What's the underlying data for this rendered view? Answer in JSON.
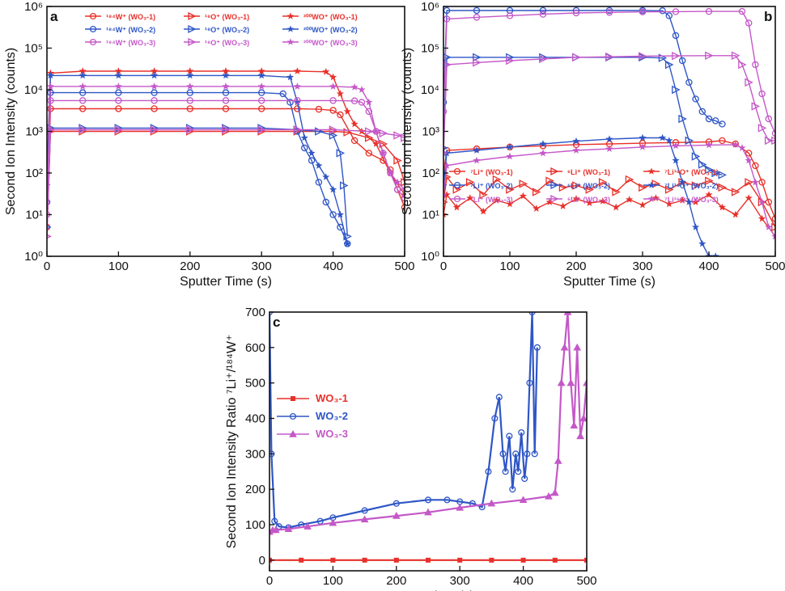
{
  "colors": {
    "red": "#e8302a",
    "blue": "#2f56c6",
    "purple": "#c458c8"
  },
  "chart_data": [
    {
      "id": "a",
      "type": "line",
      "panel_label": "a",
      "xlabel": "Sputter Time (s)",
      "ylabel": "Second Ion Intensity (counts)",
      "xlim": [
        0,
        500
      ],
      "ylim": [
        1,
        1000000
      ],
      "yscale": "log",
      "xticks": [
        "0",
        "100",
        "200",
        "300",
        "400",
        "500"
      ],
      "yticks": [
        "10⁰",
        "10¹",
        "10²",
        "10³",
        "10⁴",
        "10⁵",
        "10⁶"
      ],
      "legend_location": "top",
      "series": [
        {
          "name": "¹⁸⁴W⁺ (WO₃-1)",
          "color": "red",
          "marker": "circle",
          "x": [
            0,
            5,
            50,
            100,
            150,
            200,
            250,
            300,
            350,
            380,
            400,
            410,
            430,
            450,
            470,
            480,
            490,
            500
          ],
          "y": [
            5,
            3500,
            3500,
            3500,
            3500,
            3500,
            3500,
            3500,
            3500,
            3400,
            3200,
            2500,
            600,
            300,
            200,
            120,
            40,
            15
          ]
        },
        {
          "name": "¹⁸O⁺ (WO₃-1)",
          "color": "red",
          "marker": "triangle-right",
          "x": [
            0,
            5,
            50,
            100,
            150,
            200,
            250,
            300,
            350,
            400,
            420,
            450,
            470,
            490,
            500
          ],
          "y": [
            3,
            1000,
            1000,
            1000,
            1000,
            1000,
            1000,
            1000,
            1000,
            1000,
            950,
            700,
            500,
            200,
            60
          ]
        },
        {
          "name": "²⁰⁰WO⁺ (WO₃-1)",
          "color": "red",
          "marker": "star",
          "x": [
            0,
            5,
            50,
            100,
            150,
            200,
            250,
            300,
            350,
            390,
            400,
            410,
            420,
            430,
            440,
            460,
            480,
            500
          ],
          "y": [
            100,
            25000,
            28000,
            28000,
            28000,
            28000,
            28000,
            28000,
            28000,
            27000,
            20000,
            8000,
            3000,
            1500,
            1000,
            500,
            100,
            30
          ]
        },
        {
          "name": "¹⁸⁴W⁺ (WO₃-2)",
          "color": "blue",
          "marker": "circle",
          "x": [
            0,
            5,
            50,
            100,
            150,
            200,
            250,
            300,
            330,
            340,
            350,
            360,
            370,
            380,
            390,
            400,
            410,
            420
          ],
          "y": [
            20,
            8500,
            8500,
            8500,
            8500,
            8500,
            8500,
            8500,
            8000,
            5000,
            1000,
            400,
            200,
            60,
            20,
            10,
            5,
            2
          ]
        },
        {
          "name": "¹⁸O⁺ (WO₃-2)",
          "color": "blue",
          "marker": "triangle-right",
          "x": [
            0,
            5,
            50,
            100,
            150,
            200,
            250,
            300,
            350,
            380,
            400,
            410,
            415,
            420
          ],
          "y": [
            5,
            1200,
            1200,
            1200,
            1200,
            1200,
            1200,
            1200,
            1100,
            1000,
            800,
            300,
            50,
            3
          ]
        },
        {
          "name": "²⁰⁰WO⁺ (WO₃-2)",
          "color": "blue",
          "marker": "star",
          "x": [
            0,
            5,
            50,
            100,
            150,
            200,
            250,
            300,
            340,
            350,
            360,
            370,
            380,
            390,
            400,
            410,
            420
          ],
          "y": [
            50,
            22000,
            22000,
            22000,
            22000,
            22000,
            22000,
            22000,
            20000,
            5000,
            700,
            300,
            150,
            80,
            40,
            10,
            2
          ]
        },
        {
          "name": "¹⁸⁴W⁺ (WO₃-3)",
          "color": "purple",
          "marker": "circle",
          "x": [
            0,
            5,
            50,
            100,
            150,
            200,
            250,
            300,
            350,
            400,
            430,
            440,
            450,
            460,
            470,
            480,
            490,
            500
          ],
          "y": [
            10,
            5500,
            5500,
            5500,
            5500,
            5500,
            5500,
            5500,
            5500,
            5500,
            5400,
            5000,
            3000,
            1000,
            300,
            100,
            40,
            25
          ]
        },
        {
          "name": "¹⁸O⁺ (WO₃-3)",
          "color": "purple",
          "marker": "triangle-right",
          "x": [
            0,
            5,
            50,
            100,
            150,
            200,
            250,
            300,
            350,
            400,
            450,
            470,
            490,
            500
          ],
          "y": [
            3,
            1100,
            1100,
            1100,
            1100,
            1100,
            1100,
            1100,
            1100,
            1100,
            1000,
            900,
            800,
            700
          ]
        },
        {
          "name": "²⁰⁰WO⁺ (WO₃-3)",
          "color": "purple",
          "marker": "star",
          "x": [
            0,
            5,
            50,
            100,
            150,
            200,
            250,
            300,
            350,
            400,
            430,
            440,
            450,
            460,
            470,
            480,
            490,
            500
          ],
          "y": [
            20,
            12000,
            12000,
            12000,
            12000,
            12000,
            12000,
            12000,
            12000,
            12000,
            11500,
            10000,
            5000,
            1000,
            300,
            100,
            60,
            40
          ]
        }
      ]
    },
    {
      "id": "b",
      "type": "line",
      "panel_label": "b",
      "xlabel": "Sputter Time (s)",
      "ylabel": "Second Ion Intensity (counts)",
      "xlim": [
        0,
        500
      ],
      "ylim": [
        1,
        1000000
      ],
      "yscale": "log",
      "xticks": [
        "0",
        "100",
        "200",
        "300",
        "400",
        "500"
      ],
      "yticks": [
        "10⁰",
        "10¹",
        "10²",
        "10³",
        "10⁴",
        "10⁵",
        "10⁶"
      ],
      "legend_location": "middle",
      "series": [
        {
          "name": "⁷Li⁺ (WO₃-1)",
          "color": "red",
          "marker": "circle",
          "x": [
            0,
            5,
            50,
            100,
            150,
            200,
            250,
            300,
            350,
            400,
            420,
            440,
            460,
            470,
            480,
            490,
            500
          ],
          "y": [
            100,
            350,
            380,
            420,
            450,
            480,
            500,
            520,
            540,
            560,
            600,
            500,
            300,
            150,
            60,
            20,
            8
          ]
        },
        {
          "name": "⁶Li⁺ (WO₃-1)",
          "color": "red",
          "marker": "triangle-right",
          "x": [
            0,
            5,
            20,
            40,
            60,
            80,
            100,
            120,
            140,
            160,
            180,
            200,
            220,
            240,
            260,
            280,
            300,
            320,
            340,
            360,
            380,
            400,
            420,
            440,
            460,
            480,
            500
          ],
          "y": [
            20,
            80,
            40,
            60,
            30,
            70,
            40,
            55,
            35,
            65,
            45,
            50,
            40,
            60,
            35,
            70,
            45,
            55,
            40,
            60,
            50,
            65,
            45,
            35,
            60,
            20,
            5
          ]
        },
        {
          "name": "⁷Li¹⁶O⁺ (WO₃-1)",
          "color": "red",
          "marker": "star",
          "x": [
            0,
            5,
            20,
            40,
            60,
            80,
            100,
            120,
            140,
            160,
            180,
            200,
            220,
            240,
            260,
            280,
            300,
            320,
            340,
            360,
            380,
            400,
            420,
            440,
            460,
            480,
            500
          ],
          "y": [
            10,
            30,
            15,
            25,
            12,
            22,
            18,
            28,
            14,
            20,
            16,
            24,
            19,
            21,
            15,
            23,
            17,
            25,
            18,
            22,
            20,
            30,
            15,
            10,
            25,
            8,
            3
          ]
        },
        {
          "name": "⁷Li⁺ (WO₃-2)",
          "color": "blue",
          "marker": "circle",
          "x": [
            0,
            5,
            50,
            100,
            150,
            200,
            250,
            300,
            330,
            340,
            350,
            360,
            370,
            380,
            390,
            400,
            410,
            420
          ],
          "y": [
            5000,
            800000,
            800000,
            800000,
            800000,
            800000,
            800000,
            800000,
            790000,
            600000,
            200000,
            50000,
            15000,
            6000,
            3000,
            2000,
            1800,
            1500
          ]
        },
        {
          "name": "⁶Li⁺ (WO₃-2)",
          "color": "blue",
          "marker": "triangle-right",
          "x": [
            0,
            5,
            50,
            100,
            150,
            200,
            250,
            300,
            330,
            340,
            350,
            360,
            370,
            380,
            390,
            400,
            410,
            420
          ],
          "y": [
            400,
            60000,
            60000,
            60000,
            60000,
            60000,
            60000,
            60000,
            58000,
            40000,
            10000,
            2000,
            600,
            250,
            160,
            120,
            100,
            90
          ]
        },
        {
          "name": "⁷Li¹⁶O⁺ (WO₃-2)",
          "color": "blue",
          "marker": "star",
          "x": [
            0,
            5,
            50,
            100,
            150,
            200,
            250,
            300,
            330,
            340,
            350,
            360,
            370,
            380,
            390,
            400,
            410
          ],
          "y": [
            50,
            300,
            350,
            420,
            500,
            580,
            650,
            700,
            700,
            600,
            200,
            60,
            20,
            5,
            2,
            1,
            1
          ]
        },
        {
          "name": "⁷Li⁺ (WO₃-3)",
          "color": "purple",
          "marker": "circle",
          "x": [
            0,
            5,
            50,
            100,
            150,
            200,
            250,
            300,
            350,
            400,
            450,
            460,
            470,
            480,
            490,
            500
          ],
          "y": [
            3000,
            500000,
            550000,
            600000,
            650000,
            700000,
            720000,
            740000,
            750000,
            760000,
            760000,
            400000,
            40000,
            8000,
            2000,
            900
          ]
        },
        {
          "name": "⁶Li⁺ (WO₃-3)",
          "color": "purple",
          "marker": "triangle-right",
          "x": [
            0,
            5,
            50,
            100,
            150,
            200,
            250,
            300,
            350,
            400,
            440,
            450,
            460,
            470,
            480,
            490,
            500
          ],
          "y": [
            300,
            40000,
            45000,
            50000,
            55000,
            60000,
            62000,
            64000,
            65000,
            66000,
            66000,
            40000,
            15000,
            4000,
            1200,
            600,
            600
          ]
        },
        {
          "name": "⁷Li¹⁶O⁺ (WO₃-3)",
          "color": "purple",
          "marker": "star",
          "x": [
            0,
            5,
            50,
            100,
            150,
            200,
            250,
            300,
            350,
            400,
            440,
            450,
            460,
            470,
            480,
            490,
            500
          ],
          "y": [
            30,
            150,
            200,
            250,
            300,
            350,
            380,
            420,
            450,
            470,
            480,
            400,
            200,
            60,
            20,
            5,
            3
          ]
        }
      ]
    },
    {
      "id": "c",
      "type": "line",
      "panel_label": "c",
      "xlabel": "Sputter Time (s)",
      "ylabel": "Second Ion Intensity Ratio ⁷Li⁺/¹⁸⁴W⁺",
      "xlim": [
        0,
        500
      ],
      "ylim": [
        -30,
        700
      ],
      "yscale": "linear",
      "xticks": [
        "0",
        "100",
        "200",
        "300",
        "400",
        "500"
      ],
      "yticks": [
        "0",
        "100",
        "200",
        "300",
        "400",
        "500",
        "600",
        "700"
      ],
      "legend_location": "left",
      "series": [
        {
          "name": "WO₃-1",
          "color": "red",
          "marker": "square",
          "x": [
            0,
            50,
            100,
            150,
            200,
            250,
            300,
            350,
            400,
            450,
            500
          ],
          "y": [
            0,
            0,
            0,
            0,
            0,
            0,
            0,
            0,
            0,
            0,
            0
          ]
        },
        {
          "name": "WO₃-2",
          "color": "blue",
          "marker": "circle",
          "x": [
            0,
            3,
            8,
            15,
            30,
            50,
            80,
            100,
            150,
            200,
            250,
            280,
            300,
            320,
            335,
            345,
            355,
            362,
            368,
            372,
            378,
            383,
            388,
            392,
            397,
            402,
            406,
            410,
            414,
            418,
            422
          ],
          "y": [
            700,
            300,
            110,
            95,
            92,
            100,
            110,
            120,
            140,
            160,
            170,
            170,
            165,
            160,
            150,
            250,
            400,
            460,
            300,
            250,
            350,
            200,
            300,
            250,
            360,
            230,
            300,
            500,
            700,
            300,
            600
          ]
        },
        {
          "name": "WO₃-3",
          "color": "purple",
          "marker": "triangle",
          "x": [
            0,
            5,
            10,
            30,
            60,
            100,
            150,
            200,
            250,
            300,
            350,
            400,
            440,
            450,
            455,
            460,
            465,
            470,
            475,
            480,
            485,
            490,
            495,
            500
          ],
          "y": [
            80,
            85,
            85,
            88,
            95,
            105,
            115,
            125,
            135,
            148,
            160,
            170,
            180,
            190,
            280,
            500,
            600,
            700,
            500,
            380,
            600,
            350,
            400,
            500
          ]
        }
      ]
    }
  ]
}
